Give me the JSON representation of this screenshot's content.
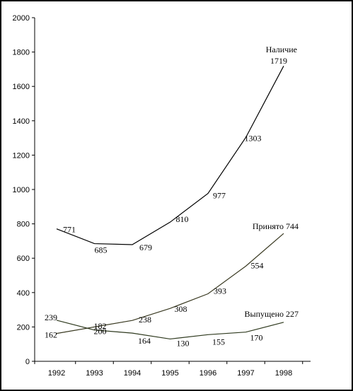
{
  "chart_data": {
    "type": "line",
    "title": "",
    "xlabel": "",
    "ylabel": "",
    "categories": [
      "1992",
      "1993",
      "1994",
      "1995",
      "1996",
      "1997",
      "1998"
    ],
    "ylim": [
      0,
      2000
    ],
    "yticks": [
      "0",
      "200",
      "400",
      "600",
      "800",
      "1000",
      "1200",
      "1400",
      "1600",
      "1800",
      "2000"
    ],
    "grid": false,
    "legend": "none",
    "series": [
      {
        "name": "Наличие",
        "end_label": "Наличие",
        "end_value_label": "1719",
        "values": [
          771,
          685,
          679,
          810,
          977,
          1303,
          1719
        ],
        "point_labels": [
          "771",
          "685",
          "679",
          "810",
          "977",
          "1303",
          ""
        ],
        "color": "#000000"
      },
      {
        "name": "Принято",
        "end_label": "Принято 744",
        "values": [
          162,
          200,
          238,
          308,
          393,
          554,
          744
        ],
        "point_labels": [
          "162",
          "200",
          "238",
          "308",
          "393",
          "554",
          ""
        ],
        "color": "#3a3a22"
      },
      {
        "name": "Выпущено",
        "end_label": "Выпущено 227",
        "values": [
          239,
          182,
          164,
          130,
          155,
          170,
          227
        ],
        "point_labels": [
          "239",
          "182",
          "164",
          "130",
          "155",
          "170",
          ""
        ],
        "color": "#2f3a1f"
      }
    ]
  }
}
